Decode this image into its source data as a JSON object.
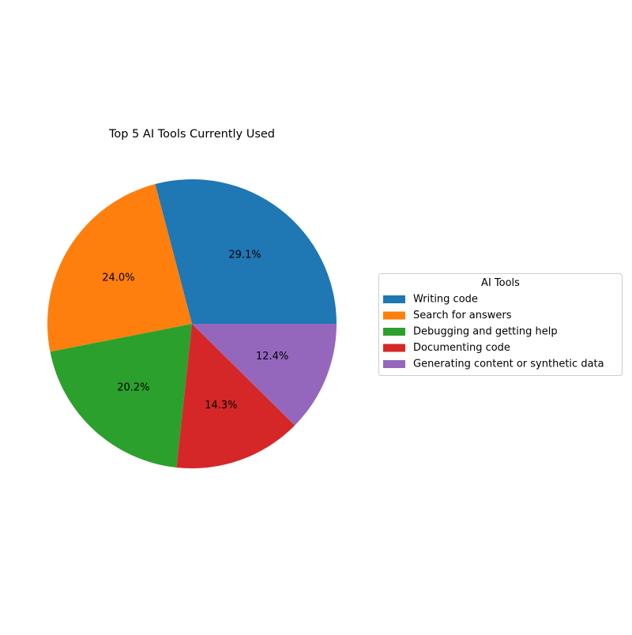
{
  "chart_data": {
    "type": "pie",
    "title": "Top 5 AI Tools Currently Used",
    "labels": [
      "Writing code",
      "Search for answers",
      "Debugging and getting help",
      "Documenting code",
      "Generating content or synthetic data"
    ],
    "values": [
      29.1,
      24.0,
      20.2,
      14.3,
      12.4
    ],
    "value_labels": [
      "29.1%",
      "24.0%",
      "20.2%",
      "14.3%",
      "12.4%"
    ],
    "colors": [
      "#1f77b4",
      "#ff7f0e",
      "#2ca02c",
      "#d62728",
      "#9467bd"
    ],
    "start_angle_deg": 0,
    "direction": "counterclockwise",
    "legend": {
      "title": "AI Tools",
      "placement": "center-right"
    }
  }
}
